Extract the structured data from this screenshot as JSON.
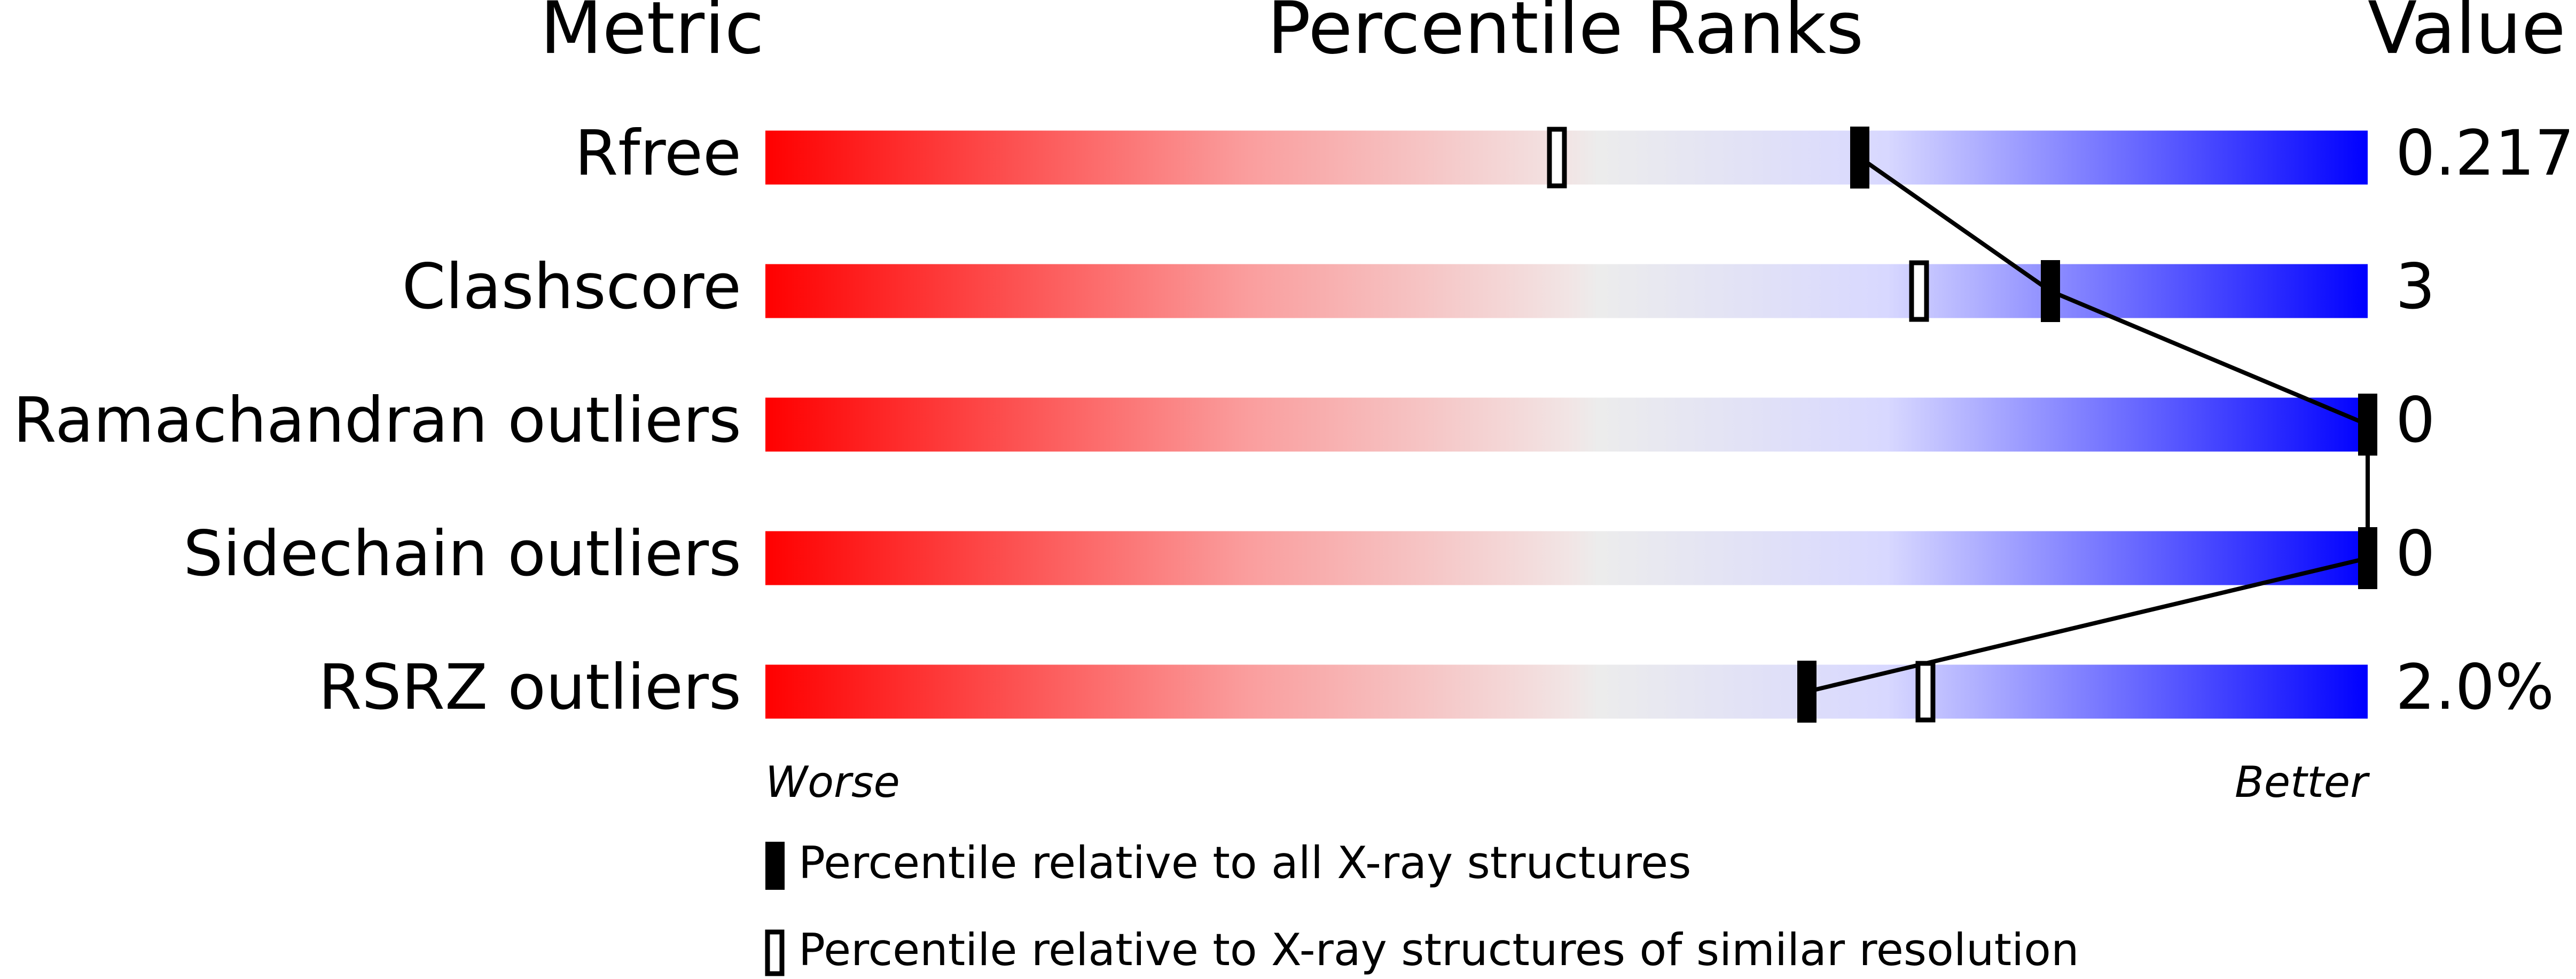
{
  "chart_data": {
    "type": "percentile-slider",
    "title": "Percentile Ranks",
    "metric_header": "Metric",
    "value_header": "Value",
    "categories": [
      "Rfree",
      "Clashscore",
      "Ramachandran outliers",
      "Sidechain outliers",
      "RSRZ outliers"
    ],
    "metric_values": [
      "0.217",
      "3",
      "0",
      "0",
      "2.0%"
    ],
    "xlim": [
      0,
      100
    ],
    "x_left_label": "Worse",
    "x_right_label": "Better",
    "series": [
      {
        "name": "Percentile relative to all X-ray structures",
        "color": "#000000",
        "filled": true,
        "values": [
          68.3,
          80.2,
          100,
          100,
          65.0
        ]
      },
      {
        "name": "Percentile relative to X-ray structures of similar resolution",
        "color": "#000000",
        "filled": false,
        "values": [
          49.4,
          72.0,
          null,
          null,
          72.4
        ]
      }
    ]
  }
}
